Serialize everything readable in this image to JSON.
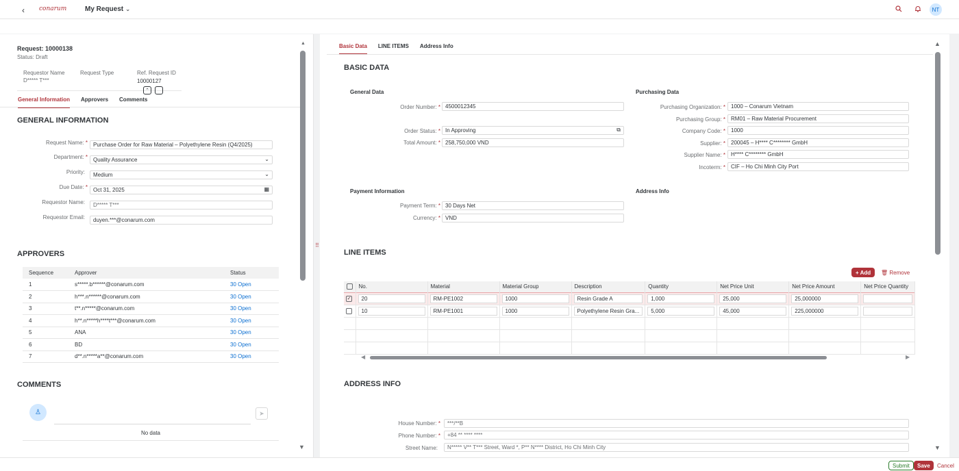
{
  "shell": {
    "back_icon": "‹",
    "logo": "conarum",
    "title": "My Request",
    "title_chevron": "⌄",
    "avatar": "NT"
  },
  "footer": {
    "submit": "Submit",
    "save": "Save",
    "cancel": "Cancel"
  },
  "splitter_icon": "⠿",
  "header": {
    "title": "Request: 10000138",
    "status": "Status: Draft",
    "requestor_label": "Requestor Name",
    "requestor_value": "D***** T***",
    "type_label": "Request Type",
    "ref_label": "Ref. Request ID",
    "ref_value": "10000127"
  },
  "left_tabs": [
    "General Information",
    "Approvers",
    "Comments"
  ],
  "general": {
    "title": "GENERAL INFORMATION",
    "fields": [
      {
        "label": "Request Name:",
        "required": true,
        "value": "Purchase Order for Raw Material – Polyethylene Resin (Q4/2025)"
      },
      {
        "label": "Department:",
        "required": true,
        "value": "Quality Assurance"
      },
      {
        "label": "Priority:",
        "required": false,
        "value": "Medium"
      },
      {
        "label": "Due Date:",
        "required": true,
        "value": "Oct 31, 2025"
      },
      {
        "label": "Requestor Name:",
        "required": false,
        "value": "D***** T***"
      },
      {
        "label": "Requestor Email:",
        "required": false,
        "value": "duyen.***@conarum.com"
      }
    ]
  },
  "approvers": {
    "title": "APPROVERS",
    "columns": [
      "Sequence",
      "Approver",
      "Status"
    ],
    "rows": [
      {
        "seq": "1",
        "approver": "s*****.b******@conarum.com",
        "status": "30 Open"
      },
      {
        "seq": "2",
        "approver": "h***.n******@conarum.com",
        "status": "30 Open"
      },
      {
        "seq": "3",
        "approver": "t**.n*****@conarum.com",
        "status": "30 Open"
      },
      {
        "seq": "4",
        "approver": "h**.n*****h****t***@conarum.com",
        "status": "30 Open"
      },
      {
        "seq": "5",
        "approver": "ANA",
        "status": "30 Open"
      },
      {
        "seq": "6",
        "approver": "BD",
        "status": "30 Open"
      },
      {
        "seq": "7",
        "approver": "d**.n*****a**@conarum.com",
        "status": "30 Open"
      }
    ]
  },
  "comments": {
    "title": "COMMENTS",
    "no_data": "No data"
  },
  "right_tabs": [
    "Basic Data",
    "LINE ITEMS",
    "Address Info"
  ],
  "basic": {
    "title": "BASIC DATA",
    "general_title": "General Data",
    "purchasing_title": "Purchasing Data",
    "payment_title": "Payment Information",
    "address_sub_title": "Address Info",
    "order_number_label": "Order Number:",
    "order_number": "4500012345",
    "order_status_label": "Order Status:",
    "order_status": "In Approving",
    "total_amount_label": "Total Amount:",
    "total_amount": "258,750,000 VND",
    "purch_org_label": "Purchasing Organization:",
    "purch_org": "1000 – Conarum Vietnam",
    "purch_group_label": "Purchasing Group:",
    "purch_group": "RM01 – Raw Material Procurement",
    "company_code_label": "Company Code:",
    "company_code": "1000",
    "supplier_label": "Supplier:",
    "supplier": "200045 –  H**** C********    GmbH",
    "supplier_name_label": "Supplier Name:",
    "supplier_name": "H**** C********    GmbH",
    "incoterm_label": "Incoterm:",
    "incoterm": "CIF – Ho Chi Minh City Port",
    "payment_term_label": "Payment Term:",
    "payment_term": "30 Days Net",
    "currency_label": "Currency:",
    "currency": "VND"
  },
  "line_items": {
    "title": "LINE ITEMS",
    "add": "Add",
    "remove": "Remove",
    "columns": [
      "No.",
      "Material",
      "Material Group",
      "Description",
      "Quantity",
      "Net Price Unit",
      "Net Price Amount",
      "Net Price Quantity"
    ],
    "rows": [
      {
        "no": "20",
        "material": "RM-PE1002",
        "group": "1000",
        "desc": "Resin Grade A",
        "qty": "1,000",
        "unit": "25,000",
        "amount": "25,000000",
        "pqty": ""
      },
      {
        "no": "10",
        "material": "RM-PE1001",
        "group": "1000",
        "desc": "Polyethylene Resin Gra...",
        "qty": "5,000",
        "unit": "45,000",
        "amount": "225,000000",
        "pqty": ""
      }
    ]
  },
  "address": {
    "title": "ADDRESS INFO",
    "house_label": "House Number:",
    "house": "***/**B",
    "phone_label": "Phone Number:",
    "phone": "+84 ** **** ****",
    "street_label": "Street Name:",
    "street": "N***** V** T*** Street, Ward *, P** N**** District, Ho Chi Minh City"
  },
  "colors": {
    "brand": "#b0333a",
    "link": "#0a6ed1"
  }
}
